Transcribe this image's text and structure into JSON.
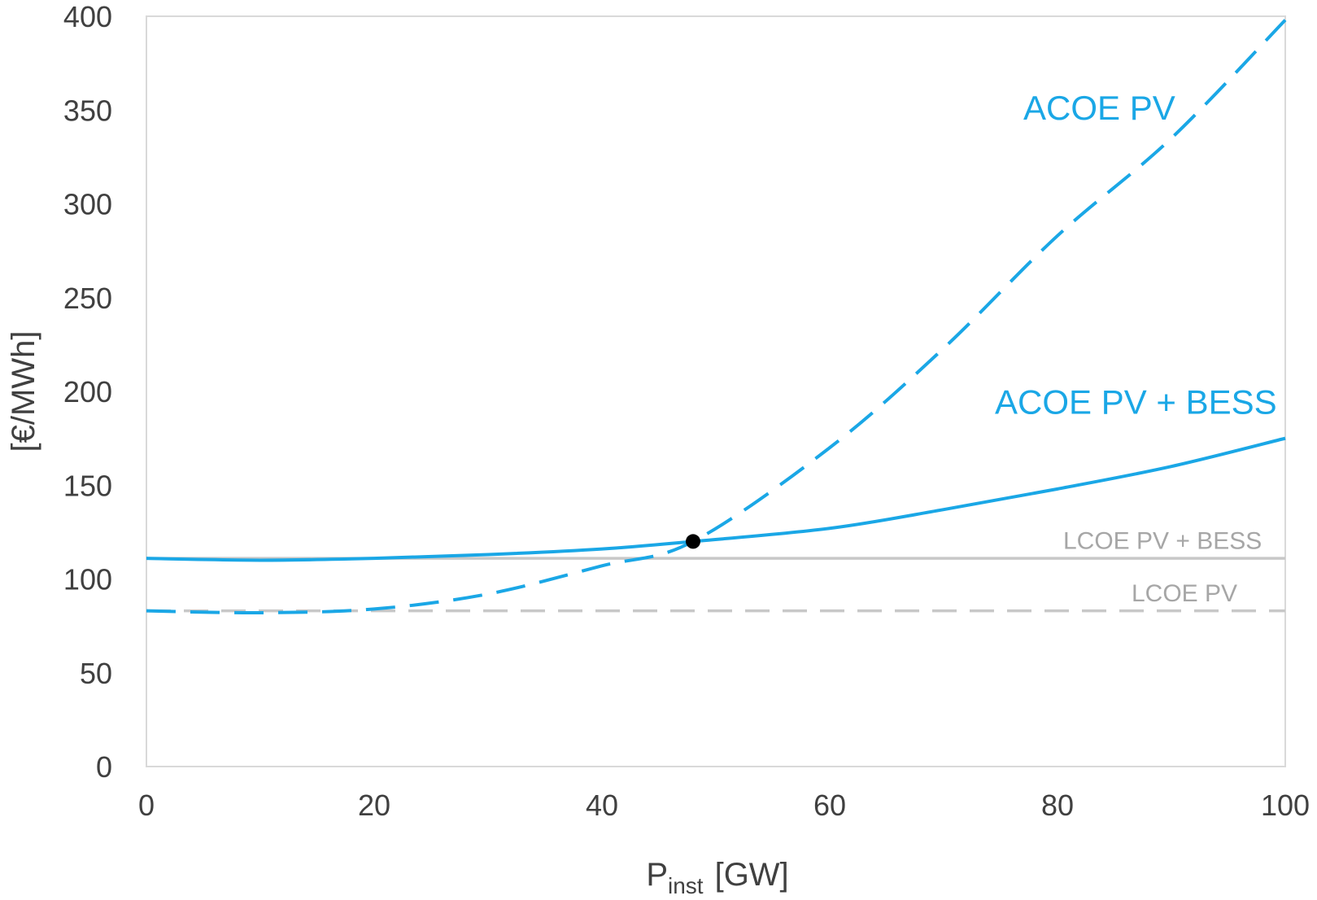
{
  "chart_data": {
    "type": "line",
    "title": "",
    "xlabel_main": "P",
    "xlabel_sub": "inst",
    "xlabel_unit": "[GW]",
    "ylabel": "[€/MWh]",
    "xlim": [
      0,
      100
    ],
    "ylim": [
      0,
      400
    ],
    "x_ticks": [
      0,
      20,
      40,
      60,
      80,
      100
    ],
    "y_ticks": [
      0,
      50,
      100,
      150,
      200,
      250,
      300,
      350,
      400
    ],
    "grid": false,
    "series": [
      {
        "name": "ACOE PV",
        "style": "dashed",
        "color": "#1AA7E6",
        "x": [
          0,
          10,
          20,
          30,
          40,
          48,
          60,
          70,
          80,
          90,
          100
        ],
        "y": [
          83,
          82,
          84,
          92,
          107,
          120,
          170,
          223,
          283,
          335,
          398
        ]
      },
      {
        "name": "ACOE PV + BESS",
        "style": "solid",
        "color": "#1AA7E6",
        "x": [
          0,
          10,
          20,
          30,
          40,
          48,
          60,
          70,
          80,
          90,
          100
        ],
        "y": [
          111,
          110,
          111,
          113,
          116,
          120,
          127,
          137,
          148,
          160,
          175
        ]
      },
      {
        "name": "LCOE PV + BESS",
        "style": "solid",
        "color": "#C8C8C8",
        "x": [
          0,
          100
        ],
        "y": [
          111,
          111
        ]
      },
      {
        "name": "LCOE PV",
        "style": "dashed",
        "color": "#C8C8C8",
        "x": [
          0,
          100
        ],
        "y": [
          83,
          83
        ]
      }
    ],
    "marker": {
      "x": 48,
      "y": 120,
      "color": "#000000"
    },
    "annotations": [
      {
        "text": "ACOE PV",
        "x": 77,
        "y": 345,
        "color": "#1AA7E6",
        "size": "large"
      },
      {
        "text": "ACOE PV + BESS",
        "x": 74.5,
        "y": 188,
        "color": "#1AA7E6",
        "size": "large"
      },
      {
        "text": "LCOE PV + BESS",
        "x": 80.5,
        "y": 116,
        "color": "#A6A6A6",
        "size": "small"
      },
      {
        "text": "LCOE PV",
        "x": 86.5,
        "y": 88,
        "color": "#A6A6A6",
        "size": "small"
      }
    ]
  }
}
